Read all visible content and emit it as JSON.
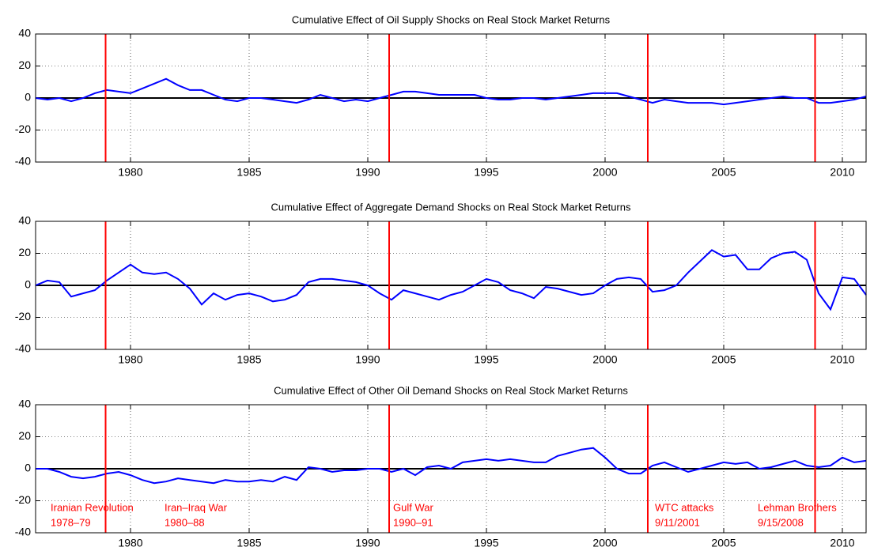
{
  "chart_data": [
    {
      "type": "line",
      "title": "Cumulative Effect of Oil Supply Shocks on Real Stock Market Returns",
      "x": [
        1976,
        1976.5,
        1977,
        1977.5,
        1978,
        1978.5,
        1979,
        1979.5,
        1980,
        1980.5,
        1981,
        1981.5,
        1982,
        1982.5,
        1983,
        1983.5,
        1984,
        1984.5,
        1985,
        1985.5,
        1986,
        1986.5,
        1987,
        1987.5,
        1988,
        1988.5,
        1989,
        1989.5,
        1990,
        1990.5,
        1991,
        1991.5,
        1992,
        1992.5,
        1993,
        1993.5,
        1994,
        1994.5,
        1995,
        1995.5,
        1996,
        1996.5,
        1997,
        1997.5,
        1998,
        1998.5,
        1999,
        1999.5,
        2000,
        2000.5,
        2001,
        2001.5,
        2002,
        2002.5,
        2003,
        2003.5,
        2004,
        2004.5,
        2005,
        2005.5,
        2006,
        2006.5,
        2007,
        2007.5,
        2008,
        2008.5,
        2009,
        2009.5,
        2010,
        2010.5,
        2011
      ],
      "series": [
        {
          "color": "#0000ff",
          "values": [
            0,
            -1,
            0,
            -2,
            0,
            3,
            5,
            4,
            3,
            6,
            9,
            12,
            8,
            5,
            5,
            2,
            -1,
            -2,
            0,
            0,
            -1,
            -2,
            -3,
            -1,
            2,
            0,
            -2,
            -1,
            -2,
            0,
            2,
            4,
            4,
            3,
            2,
            2,
            2,
            2,
            0,
            -1,
            -1,
            0,
            0,
            -1,
            0,
            1,
            2,
            3,
            3,
            3,
            1,
            -1,
            -3,
            -1,
            -2,
            -3,
            -3,
            -3,
            -4,
            -3,
            -2,
            -1,
            0,
            1,
            0,
            0,
            -3,
            -3,
            -2,
            -1,
            1
          ]
        }
      ],
      "events": [
        1978.95,
        1990.9,
        2001.8,
        2008.85
      ],
      "event_color": "#ff0000",
      "xlim": [
        1976,
        2011
      ],
      "xticks": [
        1980,
        1985,
        1990,
        1995,
        2000,
        2005,
        2010
      ],
      "ylim": [
        -40,
        40
      ],
      "yticks": [
        -40,
        -20,
        0,
        20,
        40
      ],
      "grid": true
    },
    {
      "type": "line",
      "title": "Cumulative Effect of Aggregate Demand Shocks on Real Stock Market Returns",
      "x": [
        1976,
        1976.5,
        1977,
        1977.5,
        1978,
        1978.5,
        1979,
        1979.5,
        1980,
        1980.5,
        1981,
        1981.5,
        1982,
        1982.5,
        1983,
        1983.5,
        1984,
        1984.5,
        1985,
        1985.5,
        1986,
        1986.5,
        1987,
        1987.5,
        1988,
        1988.5,
        1989,
        1989.5,
        1990,
        1990.5,
        1991,
        1991.5,
        1992,
        1992.5,
        1993,
        1993.5,
        1994,
        1994.5,
        1995,
        1995.5,
        1996,
        1996.5,
        1997,
        1997.5,
        1998,
        1998.5,
        1999,
        1999.5,
        2000,
        2000.5,
        2001,
        2001.5,
        2002,
        2002.5,
        2003,
        2003.5,
        2004,
        2004.5,
        2005,
        2005.5,
        2006,
        2006.5,
        2007,
        2007.5,
        2008,
        2008.5,
        2009,
        2009.5,
        2010,
        2010.5,
        2011
      ],
      "series": [
        {
          "color": "#0000ff",
          "values": [
            0,
            3,
            2,
            -7,
            -5,
            -3,
            3,
            8,
            13,
            8,
            7,
            8,
            4,
            -2,
            -12,
            -5,
            -9,
            -6,
            -5,
            -7,
            -10,
            -9,
            -6,
            2,
            4,
            4,
            3,
            2,
            0,
            -5,
            -9,
            -3,
            -5,
            -7,
            -9,
            -6,
            -4,
            0,
            4,
            2,
            -3,
            -5,
            -8,
            -1,
            -2,
            -4,
            -6,
            -5,
            0,
            4,
            5,
            4,
            -4,
            -3,
            0,
            8,
            15,
            22,
            18,
            19,
            10,
            10,
            17,
            20,
            21,
            16,
            -5,
            -15,
            5,
            4,
            -6
          ]
        }
      ],
      "events": [
        1978.95,
        1990.9,
        2001.8,
        2008.85
      ],
      "event_color": "#ff0000",
      "xlim": [
        1976,
        2011
      ],
      "xticks": [
        1980,
        1985,
        1990,
        1995,
        2000,
        2005,
        2010
      ],
      "ylim": [
        -40,
        40
      ],
      "yticks": [
        -40,
        -20,
        0,
        20,
        40
      ],
      "grid": true
    },
    {
      "type": "line",
      "title": "Cumulative Effect of Other Oil Demand Shocks on Real Stock Market Returns",
      "x": [
        1976,
        1976.5,
        1977,
        1977.5,
        1978,
        1978.5,
        1979,
        1979.5,
        1980,
        1980.5,
        1981,
        1981.5,
        1982,
        1982.5,
        1983,
        1983.5,
        1984,
        1984.5,
        1985,
        1985.5,
        1986,
        1986.5,
        1987,
        1987.5,
        1988,
        1988.5,
        1989,
        1989.5,
        1990,
        1990.5,
        1991,
        1991.5,
        1992,
        1992.5,
        1993,
        1993.5,
        1994,
        1994.5,
        1995,
        1995.5,
        1996,
        1996.5,
        1997,
        1997.5,
        1998,
        1998.5,
        1999,
        1999.5,
        2000,
        2000.5,
        2001,
        2001.5,
        2002,
        2002.5,
        2003,
        2003.5,
        2004,
        2004.5,
        2005,
        2005.5,
        2006,
        2006.5,
        2007,
        2007.5,
        2008,
        2008.5,
        2009,
        2009.5,
        2010,
        2010.5,
        2011
      ],
      "series": [
        {
          "color": "#0000ff",
          "values": [
            0,
            0,
            -2,
            -5,
            -6,
            -5,
            -3,
            -2,
            -4,
            -7,
            -9,
            -8,
            -6,
            -7,
            -8,
            -9,
            -7,
            -8,
            -8,
            -7,
            -8,
            -5,
            -7,
            1,
            0,
            -2,
            -1,
            -1,
            0,
            0,
            -2,
            0,
            -4,
            1,
            2,
            0,
            4,
            5,
            6,
            5,
            6,
            5,
            4,
            4,
            8,
            10,
            12,
            13,
            7,
            0,
            -3,
            -3,
            2,
            4,
            1,
            -2,
            0,
            2,
            4,
            3,
            4,
            0,
            1,
            3,
            5,
            2,
            1,
            2,
            7,
            4,
            5
          ]
        }
      ],
      "events": [
        1978.95,
        1990.9,
        2001.8,
        2008.85
      ],
      "event_color": "#ff0000",
      "annotations": [
        {
          "lines": [
            "Iranian Revolution",
            "1978–79"
          ]
        },
        {
          "lines": [
            "Iran–Iraq War",
            "1980–88"
          ]
        },
        {
          "lines": [
            "Gulf War",
            "1990–91"
          ]
        },
        {
          "lines": [
            "WTC attacks",
            "9/11/2001"
          ]
        },
        {
          "lines": [
            "Lehman Brothers",
            "9/15/2008"
          ]
        }
      ],
      "xlim": [
        1976,
        2011
      ],
      "xticks": [
        1980,
        1985,
        1990,
        1995,
        2000,
        2005,
        2010
      ],
      "ylim": [
        -40,
        40
      ],
      "yticks": [
        -40,
        -20,
        0,
        20,
        40
      ],
      "grid": true
    }
  ]
}
